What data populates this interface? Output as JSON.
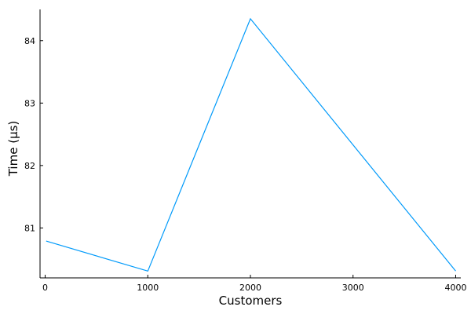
{
  "chart_data": {
    "type": "line",
    "title": "",
    "xlabel": "Customers",
    "ylabel": "Time (µs)",
    "xlim": [
      -50,
      4050
    ],
    "ylim": [
      80.2,
      84.5
    ],
    "x_ticks": [
      0,
      1000,
      2000,
      3000,
      4000
    ],
    "y_ticks": [
      81,
      82,
      83,
      84
    ],
    "grid": false,
    "legend": "none",
    "series": [
      {
        "color": "#009AFA",
        "x": [
          10,
          1000,
          2000,
          4000
        ],
        "y": [
          80.79,
          80.31,
          84.35,
          80.31
        ]
      }
    ]
  }
}
